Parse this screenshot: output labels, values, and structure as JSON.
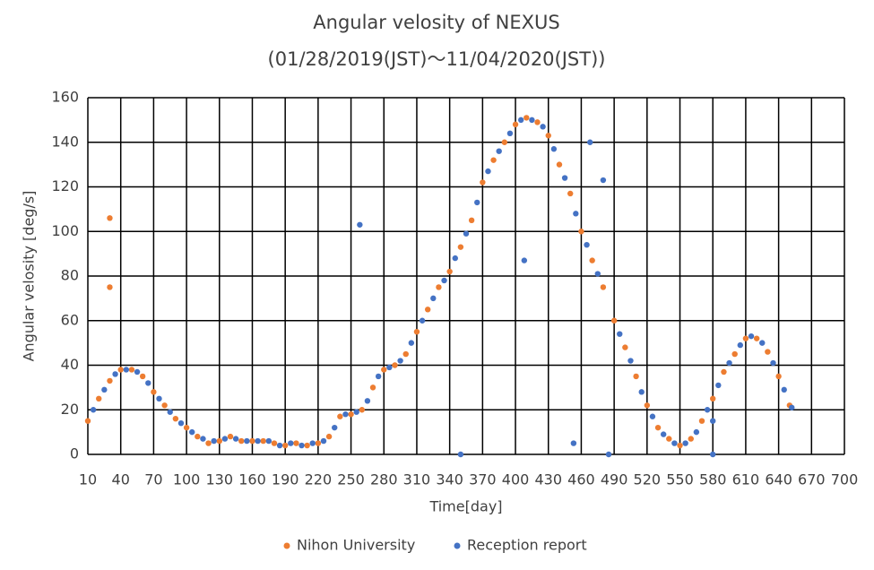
{
  "chart_data": {
    "type": "scatter",
    "title": "Angular velosity of NEXUS",
    "subtitle": "(01/28/2019(JST)～11/04/2020(JST))",
    "xlabel": "Time[day]",
    "ylabel": "Angular velosity [deg/s]",
    "xlim": [
      10,
      700
    ],
    "xticks": [
      10,
      40,
      70,
      100,
      130,
      160,
      190,
      220,
      250,
      280,
      310,
      340,
      370,
      400,
      430,
      460,
      490,
      520,
      550,
      580,
      610,
      640,
      670,
      700
    ],
    "ylim": [
      0,
      160
    ],
    "yticks": [
      0,
      20,
      40,
      60,
      80,
      100,
      120,
      140,
      160
    ],
    "grid": true,
    "legend": "bottom",
    "series": [
      {
        "name": "Nihon University",
        "color": "#ED7D31",
        "x": [
          10,
          20,
          30,
          30,
          30,
          40,
          50,
          60,
          70,
          80,
          90,
          100,
          110,
          120,
          130,
          140,
          150,
          160,
          170,
          180,
          190,
          200,
          210,
          220,
          230,
          240,
          250,
          260,
          270,
          280,
          290,
          300,
          310,
          320,
          330,
          340,
          350,
          360,
          370,
          380,
          390,
          400,
          410,
          420,
          430,
          440,
          450,
          460,
          470,
          480,
          490,
          500,
          510,
          520,
          530,
          540,
          550,
          560,
          570,
          580,
          590,
          600,
          610,
          620,
          630,
          640,
          650
        ],
        "values": [
          15,
          25,
          33,
          106,
          75,
          38,
          38,
          35,
          28,
          22,
          16,
          12,
          8,
          5,
          6,
          8,
          6,
          6,
          6,
          5,
          4,
          5,
          4,
          5,
          8,
          17,
          18,
          20,
          30,
          38,
          40,
          45,
          55,
          65,
          75,
          82,
          93,
          105,
          122,
          132,
          140,
          148,
          151,
          149,
          143,
          130,
          117,
          100,
          87,
          75,
          60,
          48,
          35,
          22,
          12,
          7,
          4,
          7,
          15,
          25,
          37,
          45,
          52,
          52,
          46,
          35,
          22
        ]
      },
      {
        "name": "Reception report",
        "color": "#4472C4",
        "x": [
          15,
          25,
          35,
          45,
          55,
          65,
          75,
          85,
          95,
          105,
          115,
          125,
          135,
          145,
          155,
          165,
          175,
          185,
          195,
          205,
          215,
          225,
          235,
          245,
          255,
          258,
          265,
          275,
          285,
          295,
          305,
          315,
          325,
          335,
          345,
          350,
          355,
          365,
          375,
          385,
          395,
          405,
          408,
          415,
          425,
          435,
          445,
          453,
          455,
          465,
          468,
          475,
          480,
          485,
          495,
          505,
          515,
          525,
          535,
          545,
          555,
          565,
          575,
          580,
          580,
          585,
          595,
          605,
          615,
          625,
          635,
          645,
          652
        ],
        "values": [
          20,
          29,
          36,
          38,
          37,
          32,
          25,
          19,
          14,
          10,
          7,
          6,
          7,
          7,
          6,
          6,
          6,
          4,
          5,
          4,
          5,
          6,
          12,
          18,
          19,
          103,
          24,
          35,
          39,
          42,
          50,
          60,
          70,
          78,
          88,
          0,
          99,
          113,
          127,
          136,
          144,
          150,
          87,
          150,
          147,
          137,
          124,
          5,
          108,
          94,
          140,
          81,
          123,
          0,
          54,
          42,
          28,
          17,
          9,
          5,
          5,
          10,
          20,
          0,
          15,
          31,
          41,
          49,
          53,
          50,
          41,
          29,
          21
        ]
      }
    ]
  }
}
